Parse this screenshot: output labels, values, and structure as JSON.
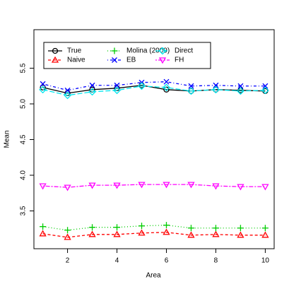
{
  "chart_data": {
    "type": "line",
    "x_label": "Area",
    "y_label": "Mean",
    "x": [
      1,
      2,
      3,
      4,
      5,
      6,
      7,
      8,
      9,
      10
    ],
    "xlim": [
      0.64,
      10.36
    ],
    "xticks": [
      2,
      4,
      6,
      8,
      10
    ],
    "ylim": [
      2.97,
      6.04
    ],
    "yticks": [
      3.5,
      {
        "value": 4,
        "label": "4.0"
      },
      4.5,
      {
        "value": 5,
        "label": "5.0"
      },
      5.5
    ],
    "legend_position": "top-left",
    "series": [
      {
        "name": "True",
        "color": "#000000",
        "marker": "circle",
        "linestyle": "solid",
        "values": [
          5.23,
          5.15,
          5.2,
          5.22,
          5.26,
          5.2,
          5.18,
          5.2,
          5.19,
          5.18
        ]
      },
      {
        "name": "Naive",
        "color": "#ff0000",
        "marker": "triangle",
        "linestyle": "dashed",
        "values": [
          3.18,
          3.13,
          3.17,
          3.17,
          3.19,
          3.2,
          3.16,
          3.17,
          3.16,
          3.16
        ]
      },
      {
        "name": "Molina (2009)",
        "color": "#00cd00",
        "marker": "plus",
        "linestyle": "dotted",
        "values": [
          3.28,
          3.23,
          3.27,
          3.27,
          3.29,
          3.3,
          3.26,
          3.26,
          3.26,
          3.26
        ]
      },
      {
        "name": "EB",
        "color": "#0000ff",
        "marker": "cross",
        "linestyle": "dotdash",
        "values": [
          5.28,
          5.19,
          5.26,
          5.26,
          5.3,
          5.31,
          5.25,
          5.26,
          5.25,
          5.25
        ]
      },
      {
        "name": "Direct",
        "color": "#00e5ee",
        "marker": "diamond",
        "linestyle": "longdash",
        "values": [
          5.2,
          5.12,
          5.17,
          5.19,
          5.25,
          5.23,
          5.18,
          5.2,
          5.18,
          5.19
        ]
      },
      {
        "name": "FH",
        "color": "#ff00ff",
        "marker": "triangle-down",
        "linestyle": "twodash",
        "values": [
          3.85,
          3.83,
          3.86,
          3.86,
          3.87,
          3.87,
          3.87,
          3.85,
          3.84,
          3.84
        ]
      }
    ]
  }
}
